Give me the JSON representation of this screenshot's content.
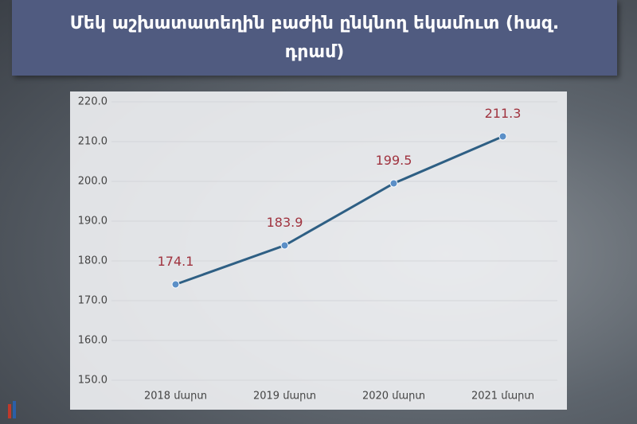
{
  "chart_data": {
    "type": "line",
    "title": "Մեկ աշխատատեղին բաժին ընկնող եկամուտ (հազ. դրամ)",
    "categories": [
      "2018 մարտ",
      "2019 մարտ",
      "2020 մարտ",
      "2021 մարտ"
    ],
    "series": [
      {
        "name": "Մեկ աշխատատեղին բաժին ընկնող եկամուտ",
        "color": "#2e5f84",
        "values": [
          174.1,
          183.9,
          199.5,
          211.3
        ]
      }
    ],
    "ylim": [
      147,
      222
    ],
    "yticks": [
      {
        "value": 150,
        "label": "150.0"
      },
      {
        "value": 160,
        "label": "160.0"
      },
      {
        "value": 170,
        "label": "170.0"
      },
      {
        "value": 180,
        "label": "180.0"
      },
      {
        "value": 190,
        "label": "190.0"
      },
      {
        "value": 200,
        "label": "200.0"
      },
      {
        "value": 210,
        "label": "210.0"
      },
      {
        "value": 220,
        "label": "220.0"
      }
    ],
    "grid": true
  }
}
